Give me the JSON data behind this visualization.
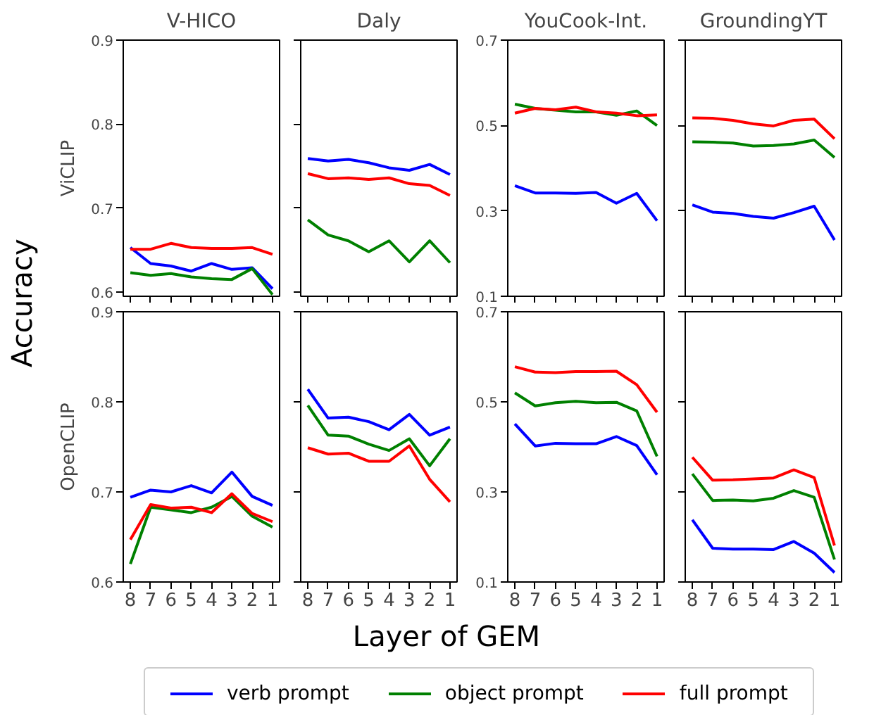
{
  "chart_data": [
    {
      "type": "line",
      "title": "V-HICO",
      "ylabel": "ViCLIP",
      "categories": [
        "8",
        "7",
        "6",
        "5",
        "4",
        "3",
        "2",
        "1"
      ],
      "ylim": [
        0.595,
        0.9
      ],
      "yticks": [
        0.6,
        0.7,
        0.8,
        0.9
      ],
      "tick_labels": "y",
      "grid": false,
      "legend": "bottom",
      "annotations": [
        "Accuracy",
        "Layer of GEM"
      ],
      "series": [
        {
          "name": "verb prompt",
          "color": "#0000ff",
          "values": [
            0.653,
            0.634,
            0.631,
            0.625,
            0.634,
            0.627,
            0.629,
            0.604
          ]
        },
        {
          "name": "object prompt",
          "color": "#008000",
          "values": [
            0.623,
            0.62,
            0.622,
            0.618,
            0.616,
            0.615,
            0.628,
            0.597
          ]
        },
        {
          "name": "full prompt",
          "color": "#ff0000",
          "values": [
            0.651,
            0.651,
            0.658,
            0.653,
            0.652,
            0.652,
            0.653,
            0.645
          ]
        }
      ]
    },
    {
      "type": "line",
      "title": "Daly",
      "categories": [
        "8",
        "7",
        "6",
        "5",
        "4",
        "3",
        "2",
        "1"
      ],
      "ylim": [
        0.595,
        0.9
      ],
      "yticks": [
        0.6,
        0.7,
        0.8,
        0.9
      ],
      "tick_labels": false,
      "grid": false,
      "series": [
        {
          "color": "#0000ff",
          "values": [
            0.759,
            0.756,
            0.758,
            0.754,
            0.748,
            0.745,
            0.752,
            0.74
          ]
        },
        {
          "color": "#008000",
          "values": [
            0.686,
            0.668,
            0.661,
            0.648,
            0.661,
            0.636,
            0.661,
            0.635
          ]
        },
        {
          "color": "#ff0000",
          "values": [
            0.741,
            0.735,
            0.736,
            0.734,
            0.736,
            0.729,
            0.727,
            0.715
          ]
        }
      ]
    },
    {
      "type": "line",
      "title": "YouCook-Int.",
      "categories": [
        "8",
        "7",
        "6",
        "5",
        "4",
        "3",
        "2",
        "1"
      ],
      "ylim": [
        0.1,
        0.7
      ],
      "yticks": [
        0.1,
        0.3,
        0.5,
        0.7
      ],
      "tick_labels": "y",
      "grid": false,
      "series": [
        {
          "color": "#0000ff",
          "values": [
            0.359,
            0.342,
            0.342,
            0.341,
            0.343,
            0.318,
            0.341,
            0.277
          ]
        },
        {
          "color": "#008000",
          "values": [
            0.55,
            0.54,
            0.536,
            0.532,
            0.532,
            0.524,
            0.534,
            0.5
          ]
        },
        {
          "color": "#ff0000",
          "values": [
            0.529,
            0.54,
            0.537,
            0.543,
            0.532,
            0.529,
            0.523,
            0.525
          ]
        }
      ]
    },
    {
      "type": "line",
      "title": "GroundingYT",
      "categories": [
        "8",
        "7",
        "6",
        "5",
        "4",
        "3",
        "2",
        "1"
      ],
      "ylim": [
        0.1,
        0.7
      ],
      "yticks": [
        0.1,
        0.3,
        0.5,
        0.7
      ],
      "tick_labels": false,
      "grid": false,
      "series": [
        {
          "color": "#0000ff",
          "values": [
            0.314,
            0.297,
            0.294,
            0.287,
            0.283,
            0.296,
            0.311,
            0.232
          ]
        },
        {
          "color": "#008000",
          "values": [
            0.462,
            0.461,
            0.459,
            0.452,
            0.453,
            0.457,
            0.466,
            0.425
          ]
        },
        {
          "color": "#ff0000",
          "values": [
            0.518,
            0.517,
            0.512,
            0.504,
            0.499,
            0.512,
            0.515,
            0.469
          ]
        }
      ]
    },
    {
      "type": "line",
      "ylabel": "OpenCLIP",
      "categories": [
        "8",
        "7",
        "6",
        "5",
        "4",
        "3",
        "2",
        "1"
      ],
      "ylim": [
        0.6,
        0.9
      ],
      "yticks": [
        0.6,
        0.7,
        0.8,
        0.9
      ],
      "grid": false,
      "series": [
        {
          "color": "#0000ff",
          "values": [
            0.694,
            0.702,
            0.7,
            0.707,
            0.699,
            0.722,
            0.695,
            0.685
          ]
        },
        {
          "color": "#008000",
          "values": [
            0.62,
            0.683,
            0.68,
            0.677,
            0.683,
            0.695,
            0.673,
            0.661
          ]
        },
        {
          "color": "#ff0000",
          "values": [
            0.647,
            0.686,
            0.682,
            0.683,
            0.677,
            0.698,
            0.676,
            0.667
          ]
        }
      ]
    },
    {
      "type": "line",
      "categories": [
        "8",
        "7",
        "6",
        "5",
        "4",
        "3",
        "2",
        "1"
      ],
      "ylim": [
        0.6,
        0.9
      ],
      "yticks": [
        0.6,
        0.7,
        0.8,
        0.9
      ],
      "tick_labels": "x",
      "grid": false,
      "series": [
        {
          "color": "#0000ff",
          "values": [
            0.814,
            0.782,
            0.783,
            0.778,
            0.769,
            0.786,
            0.763,
            0.772
          ]
        },
        {
          "color": "#008000",
          "values": [
            0.796,
            0.763,
            0.762,
            0.753,
            0.746,
            0.759,
            0.729,
            0.759
          ]
        },
        {
          "color": "#ff0000",
          "values": [
            0.749,
            0.742,
            0.743,
            0.734,
            0.734,
            0.751,
            0.714,
            0.689
          ]
        }
      ]
    },
    {
      "type": "line",
      "categories": [
        "8",
        "7",
        "6",
        "5",
        "4",
        "3",
        "2",
        "1"
      ],
      "ylim": [
        0.1,
        0.7
      ],
      "yticks": [
        0.1,
        0.3,
        0.5,
        0.7
      ],
      "grid": false,
      "series": [
        {
          "color": "#0000ff",
          "values": [
            0.451,
            0.402,
            0.408,
            0.407,
            0.407,
            0.423,
            0.403,
            0.338
          ]
        },
        {
          "color": "#008000",
          "values": [
            0.52,
            0.491,
            0.498,
            0.501,
            0.498,
            0.499,
            0.48,
            0.379
          ]
        },
        {
          "color": "#ff0000",
          "values": [
            0.578,
            0.566,
            0.565,
            0.567,
            0.567,
            0.568,
            0.538,
            0.477
          ]
        }
      ]
    },
    {
      "type": "line",
      "categories": [
        "8",
        "7",
        "6",
        "5",
        "4",
        "3",
        "2",
        "1"
      ],
      "ylim": [
        0.1,
        0.7
      ],
      "yticks": [
        0.1,
        0.3,
        0.5,
        0.7
      ],
      "tick_labels": "x",
      "grid": false,
      "series": [
        {
          "color": "#0000ff",
          "values": [
            0.238,
            0.175,
            0.173,
            0.173,
            0.172,
            0.19,
            0.164,
            0.121
          ]
        },
        {
          "color": "#008000",
          "values": [
            0.34,
            0.281,
            0.282,
            0.28,
            0.286,
            0.303,
            0.288,
            0.15
          ]
        },
        {
          "color": "#ff0000",
          "values": [
            0.377,
            0.326,
            0.327,
            0.329,
            0.331,
            0.349,
            0.332,
            0.181
          ]
        }
      ]
    }
  ]
}
